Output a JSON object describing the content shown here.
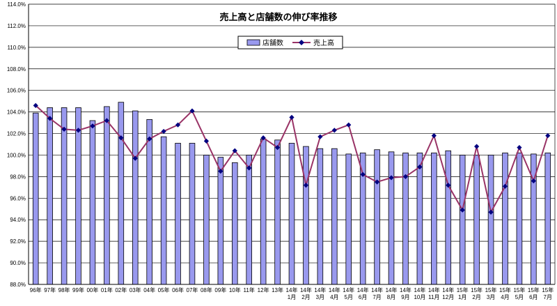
{
  "chart_data": {
    "type": "bar",
    "title": "売上高と店舗数の伸び率推移",
    "xlabel": "",
    "ylabel": "",
    "ylim": [
      88.0,
      114.0
    ],
    "yticks": [
      "88.0%",
      "90.0%",
      "92.0%",
      "94.0%",
      "96.0%",
      "98.0%",
      "100.0%",
      "102.0%",
      "104.0%",
      "106.0%",
      "108.0%",
      "110.0%",
      "112.0%",
      "114.0%"
    ],
    "grid": true,
    "legend_position": "top-center",
    "categories": [
      [
        "96年"
      ],
      [
        "97年"
      ],
      [
        "98年"
      ],
      [
        "99年"
      ],
      [
        "00年"
      ],
      [
        "01年"
      ],
      [
        "02年"
      ],
      [
        "03年"
      ],
      [
        "04年"
      ],
      [
        "05年"
      ],
      [
        "06年"
      ],
      [
        "07年"
      ],
      [
        "08年"
      ],
      [
        "09年"
      ],
      [
        "10年"
      ],
      [
        "11年"
      ],
      [
        "12年"
      ],
      [
        "13年"
      ],
      [
        "14年",
        "1月"
      ],
      [
        "14年",
        "2月"
      ],
      [
        "14年",
        "3月"
      ],
      [
        "14年",
        "4月"
      ],
      [
        "14年",
        "5月"
      ],
      [
        "14年",
        "6月"
      ],
      [
        "14年",
        "7月"
      ],
      [
        "14年",
        "8月"
      ],
      [
        "14年",
        "9月"
      ],
      [
        "14年",
        "10月"
      ],
      [
        "14年",
        "11月"
      ],
      [
        "14年",
        "12月"
      ],
      [
        "15年",
        "1月"
      ],
      [
        "15年",
        "2月"
      ],
      [
        "15年",
        "3月"
      ],
      [
        "15年",
        "4月"
      ],
      [
        "15年",
        "5月"
      ],
      [
        "15年",
        "6月"
      ],
      [
        "15年",
        "7月"
      ]
    ],
    "series": [
      {
        "name": "店舗数",
        "type": "bar",
        "color": "#9999ee",
        "values": [
          103.9,
          104.4,
          104.4,
          104.4,
          103.2,
          104.5,
          104.9,
          104.1,
          103.3,
          101.7,
          101.1,
          101.1,
          100.0,
          99.8,
          99.3,
          100.0,
          101.5,
          101.4,
          101.1,
          100.8,
          100.6,
          100.6,
          100.1,
          100.2,
          100.5,
          100.3,
          100.2,
          100.2,
          100.2,
          100.4,
          100.0,
          100.0,
          100.0,
          100.2,
          100.2,
          100.1,
          100.2
        ]
      },
      {
        "name": "売上高",
        "type": "line",
        "color": "#993366",
        "marker_color": "#000080",
        "values": [
          104.6,
          103.4,
          102.4,
          102.3,
          102.7,
          103.2,
          101.6,
          99.7,
          101.5,
          102.2,
          102.8,
          104.1,
          101.3,
          98.5,
          100.4,
          98.8,
          101.6,
          100.7,
          103.5,
          97.2,
          101.7,
          102.3,
          102.8,
          98.2,
          97.5,
          97.9,
          98.0,
          98.9,
          101.8,
          97.2,
          94.9,
          100.8,
          94.7,
          97.1,
          100.7,
          97.6,
          101.8
        ]
      }
    ]
  }
}
